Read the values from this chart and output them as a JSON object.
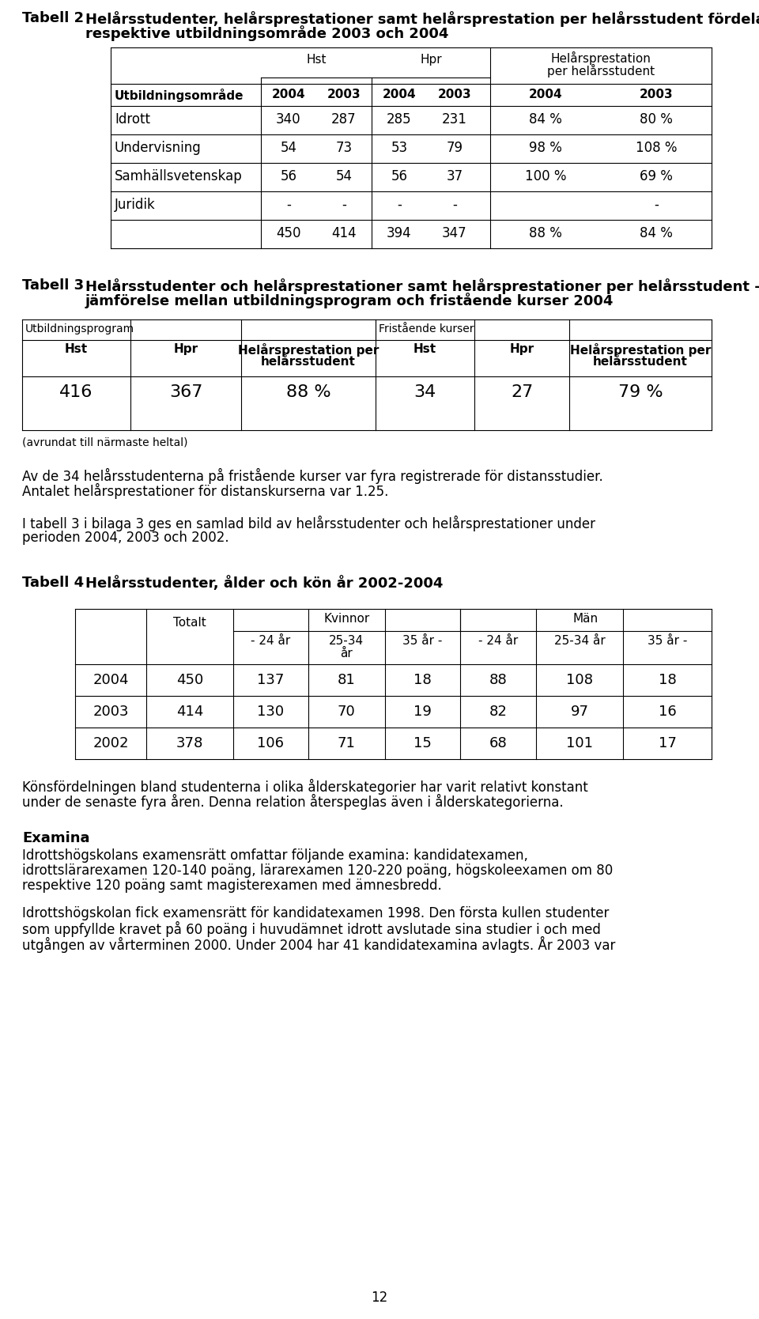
{
  "page_bg": "#ffffff",
  "text_color": "#000000",
  "t2_title_bold": "Tabell 2",
  "t2_title_rest_line1": "Helårsstudenter, helårsprestationer samt helårsprestation per helårsstudent fördelat på",
  "t2_title_rest_line2": "respektive utbildningsområde 2003 och 2004",
  "tabell2_rows": [
    [
      "Idrott",
      "340",
      "287",
      "285",
      "231",
      "84 %",
      "80 %"
    ],
    [
      "Undervisning",
      "54",
      "73",
      "53",
      "79",
      "98 %",
      "108 %"
    ],
    [
      "Samhällsvetenskap",
      "56",
      "54",
      "56",
      "37",
      "100 %",
      "69 %"
    ],
    [
      "Juridik",
      "-",
      "-",
      "-",
      "-",
      "",
      "-"
    ],
    [
      "",
      "450",
      "414",
      "394",
      "347",
      "88 %",
      "84 %"
    ]
  ],
  "t3_title_bold": "Tabell 3",
  "t3_title_rest_line1": "Helårsstudenter och helårsprestationer samt helårsprestationer per helårsstudent –",
  "t3_title_rest_line2": "jämförelse mellan utbildningsprogram och fristående kurser 2004",
  "tabell3_data_row": [
    "416",
    "367",
    "88 %",
    "34",
    "27",
    "79 %"
  ],
  "tabell3_footnote": "(avrundat till närmaste heltal)",
  "para1_lines": [
    "Av de 34 helårsstudenterna på fristående kurser var fyra registrerade för distansstudier.",
    "Antalet helårsprestationer för distanskurserna var 1.25."
  ],
  "para2_lines": [
    "I tabell 3 i bilaga 3 ges en samlad bild av helårsstudenter och helårsprestationer under",
    "perioden 2004, 2003 och 2002."
  ],
  "t4_title_bold": "Tabell 4",
  "t4_title_rest": "Helårsstudenter, ålder och kön år 2002-2004",
  "tabell4_rows": [
    [
      "2004",
      "450",
      "137",
      "81",
      "18",
      "88",
      "108",
      "18"
    ],
    [
      "2003",
      "414",
      "130",
      "70",
      "19",
      "82",
      "97",
      "16"
    ],
    [
      "2002",
      "378",
      "106",
      "71",
      "15",
      "68",
      "101",
      "17"
    ]
  ],
  "para3_lines": [
    "Könsfördelningen bland studenterna i olika ålderskategorier har varit relativt konstant",
    "under de senaste fyra åren. Denna relation återspeglas även i ålderskategorierna."
  ],
  "examina_title": "Examina",
  "examina_para1_lines": [
    "Idrottshögskolans examensrätt omfattar följande examina: kandidatexamen,",
    "idrottslärarexamen 120-140 poäng, lärarexamen 120-220 poäng, högskoleexamen om 80",
    "respektive 120 poäng samt magisterexamen med ämnesbredd."
  ],
  "examina_para2_lines": [
    "Idrottshögskolan fick examensrätt för kandidatexamen 1998. Den första kullen studenter",
    "som uppfyllde kravet på 60 poäng i huvudämnet idrott avslutade sina studier i och med",
    "utgången av vårterminen 2000. Under 2004 har 41 kandidatexamina avlagts. År 2003 var"
  ],
  "page_number": "12"
}
